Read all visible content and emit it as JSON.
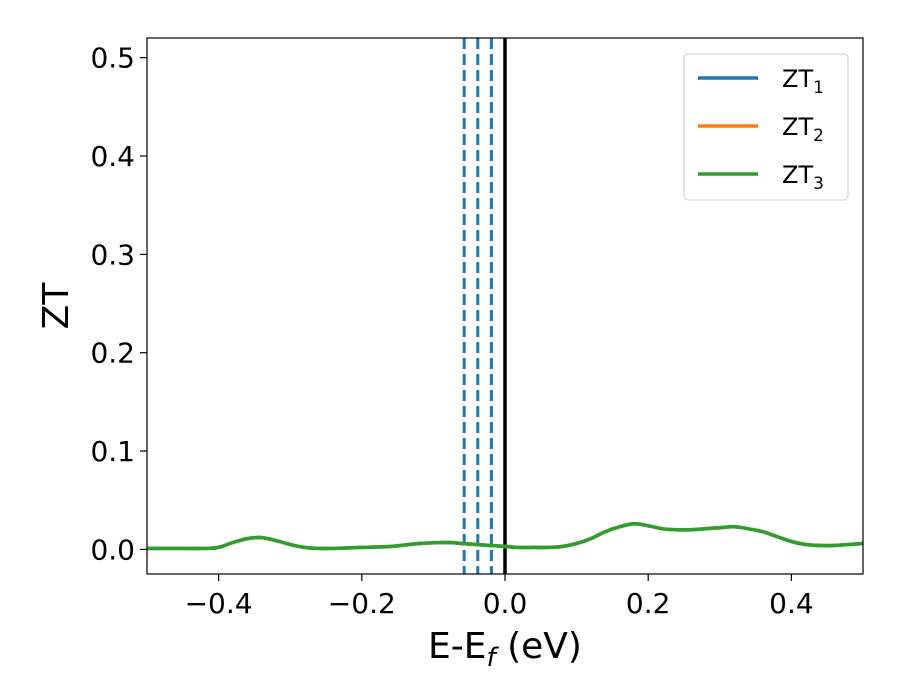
{
  "chart_data": {
    "type": "line",
    "xlabel": "E-E",
    "xlabel_sub": "f",
    "xlabel_unit": " (eV)",
    "ylabel": "ZT",
    "xlim": [
      -0.5,
      0.5
    ],
    "ylim": [
      -0.025,
      0.52
    ],
    "grid": false,
    "legend_position": "top-right",
    "x_ticks": [
      -0.4,
      -0.2,
      0.0,
      0.2,
      0.4
    ],
    "x_tick_labels": [
      "−0.4",
      "−0.2",
      "0.0",
      "0.2",
      "0.4"
    ],
    "y_ticks": [
      0.0,
      0.1,
      0.2,
      0.3,
      0.4,
      0.5
    ],
    "y_tick_labels": [
      "0.0",
      "0.1",
      "0.2",
      "0.3",
      "0.4",
      "0.5"
    ],
    "x": [
      -0.5,
      -0.45,
      -0.42,
      -0.4,
      -0.38,
      -0.36,
      -0.34,
      -0.32,
      -0.3,
      -0.28,
      -0.26,
      -0.24,
      -0.2,
      -0.16,
      -0.12,
      -0.08,
      -0.06,
      -0.04,
      -0.02,
      0.0,
      0.02,
      0.04,
      0.06,
      0.08,
      0.1,
      0.12,
      0.14,
      0.16,
      0.18,
      0.2,
      0.22,
      0.24,
      0.26,
      0.28,
      0.3,
      0.32,
      0.34,
      0.36,
      0.38,
      0.4,
      0.42,
      0.44,
      0.46,
      0.48,
      0.5
    ],
    "series": [
      {
        "name": "ZT",
        "name_sub": "1",
        "color": "#1f77b4",
        "values": [
          0.001,
          0.001,
          0.001,
          0.002,
          0.007,
          0.011,
          0.012,
          0.009,
          0.005,
          0.002,
          0.001,
          0.001,
          0.002,
          0.003,
          0.006,
          0.007,
          0.006,
          0.005,
          0.004,
          0.003,
          0.002,
          0.002,
          0.002,
          0.003,
          0.006,
          0.011,
          0.018,
          0.023,
          0.026,
          0.024,
          0.021,
          0.02,
          0.02,
          0.021,
          0.022,
          0.023,
          0.021,
          0.018,
          0.013,
          0.008,
          0.005,
          0.004,
          0.004,
          0.005,
          0.006
        ]
      },
      {
        "name": "ZT",
        "name_sub": "2",
        "color": "#ff7f0e",
        "values": [
          0.001,
          0.001,
          0.001,
          0.002,
          0.007,
          0.011,
          0.012,
          0.009,
          0.005,
          0.002,
          0.001,
          0.001,
          0.002,
          0.003,
          0.006,
          0.007,
          0.006,
          0.005,
          0.004,
          0.003,
          0.002,
          0.002,
          0.002,
          0.003,
          0.006,
          0.011,
          0.018,
          0.023,
          0.026,
          0.024,
          0.021,
          0.02,
          0.02,
          0.021,
          0.022,
          0.023,
          0.021,
          0.018,
          0.013,
          0.008,
          0.005,
          0.004,
          0.004,
          0.005,
          0.006
        ]
      },
      {
        "name": "ZT",
        "name_sub": "3",
        "color": "#2ca02c",
        "values": [
          0.001,
          0.001,
          0.001,
          0.002,
          0.007,
          0.011,
          0.012,
          0.009,
          0.005,
          0.002,
          0.001,
          0.001,
          0.002,
          0.003,
          0.006,
          0.007,
          0.006,
          0.005,
          0.004,
          0.003,
          0.002,
          0.002,
          0.002,
          0.003,
          0.006,
          0.011,
          0.018,
          0.023,
          0.026,
          0.024,
          0.021,
          0.02,
          0.02,
          0.021,
          0.022,
          0.023,
          0.021,
          0.018,
          0.013,
          0.008,
          0.005,
          0.004,
          0.004,
          0.005,
          0.006
        ]
      }
    ],
    "vlines": [
      {
        "x": -0.057,
        "style": "dashed",
        "color": "#1f77b4"
      },
      {
        "x": -0.038,
        "style": "dashed",
        "color": "#1f77b4"
      },
      {
        "x": -0.019,
        "style": "dashed",
        "color": "#1f77b4"
      },
      {
        "x": 0.0,
        "style": "solid",
        "color": "#000000"
      }
    ]
  }
}
